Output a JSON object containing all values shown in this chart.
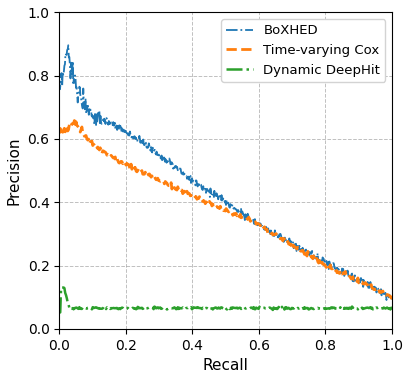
{
  "title": "",
  "xlabel": "Recall",
  "ylabel": "Precision",
  "xlim": [
    0.0,
    1.0
  ],
  "ylim": [
    0.0,
    1.0
  ],
  "yticks": [
    0.0,
    0.2,
    0.4,
    0.6,
    0.8,
    1.0
  ],
  "xticks": [
    0.0,
    0.2,
    0.4,
    0.6,
    0.8,
    1.0
  ],
  "grid": true,
  "legend": {
    "labels": [
      "BoXHED",
      "Time-varying Cox",
      "Dynamic DeepHit"
    ],
    "loc": "upper right"
  },
  "boxhed_color": "#1f77b4",
  "cox_color": "#ff7f0e",
  "deephit_color": "#2ca02c",
  "figsize": [
    4.1,
    3.8
  ],
  "dpi": 100
}
